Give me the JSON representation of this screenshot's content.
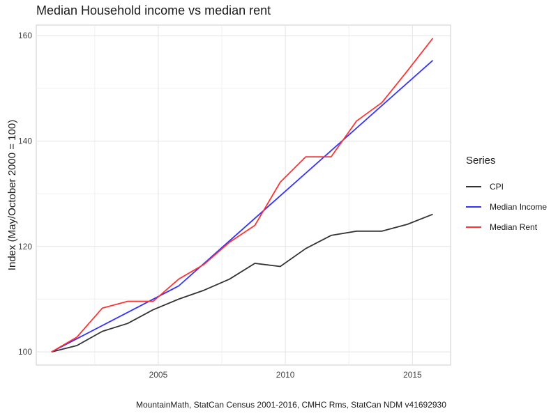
{
  "chart_data": {
    "type": "line",
    "title": "Median Household income vs median rent",
    "xlabel": "",
    "ylabel": "Index (May/October 2000 = 100)",
    "caption": "MountainMath, StatCan Census 2001-2016, CMHC Rms, StatCan NDM v41692930",
    "legend_title": "Series",
    "legend_position": "right",
    "grid": true,
    "xlim": [
      2000.2,
      2016.5
    ],
    "ylim": [
      97.5,
      162
    ],
    "x_ticks": [
      2005,
      2010,
      2015
    ],
    "y_ticks": [
      100,
      120,
      140,
      160
    ],
    "x": [
      2000.8,
      2001.8,
      2002.8,
      2003.8,
      2004.8,
      2005.8,
      2006.8,
      2007.8,
      2008.8,
      2009.8,
      2010.8,
      2011.8,
      2012.8,
      2013.8,
      2014.8,
      2015.8
    ],
    "series": [
      {
        "name": "CPI",
        "color": "#333333",
        "values": [
          100.0,
          101.2,
          103.9,
          105.4,
          108.0,
          110.0,
          111.7,
          113.8,
          116.8,
          116.2,
          119.6,
          122.1,
          122.9,
          122.9,
          124.2,
          126.1
        ]
      },
      {
        "name": "Median Income",
        "color": "#3333ff",
        "x": [
          2000.8,
          2005.8,
          2015.8
        ],
        "values": [
          100.0,
          112.5,
          155.3
        ]
      },
      {
        "name": "Median Rent",
        "color": "#ff3333",
        "values": [
          100.0,
          102.8,
          108.3,
          109.6,
          109.6,
          113.8,
          116.6,
          120.8,
          124.0,
          132.2,
          137.0,
          137.0,
          143.8,
          147.3,
          153.3,
          159.5
        ]
      }
    ]
  }
}
